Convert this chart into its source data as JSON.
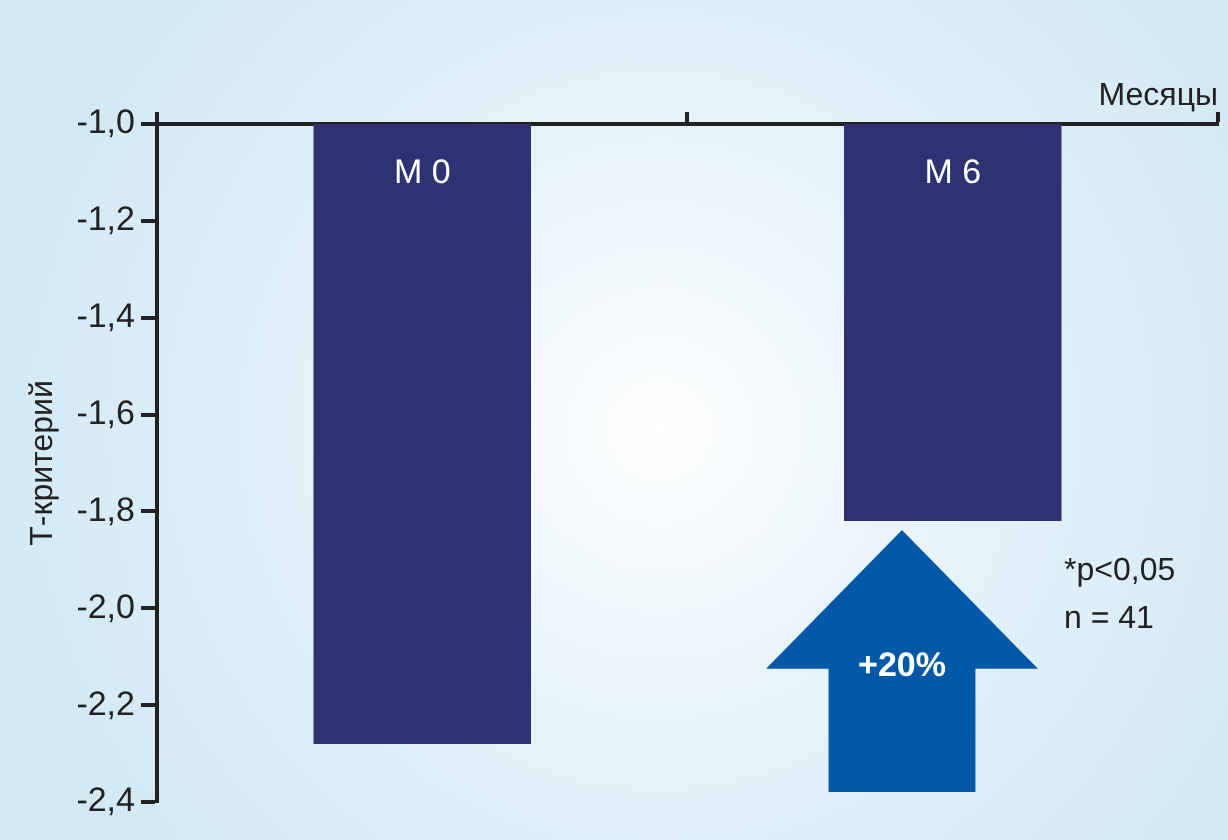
{
  "chart_data": {
    "type": "bar",
    "categories": [
      "M 0",
      "M 6"
    ],
    "values": [
      -2.28,
      -1.82
    ],
    "color": "#2e3172",
    "xlabel": "Месяцы",
    "ylabel": "Т-критерий",
    "ylim": [
      -2.4,
      -1.0
    ],
    "yticks": [
      {
        "value": -2.4,
        "label": "-2,4"
      },
      {
        "value": -2.2,
        "label": "-2,2"
      },
      {
        "value": -2.0,
        "label": "-2,0"
      },
      {
        "value": -1.8,
        "label": "-1,8"
      },
      {
        "value": -1.6,
        "label": "-1,6"
      },
      {
        "value": -1.4,
        "label": "-1,4"
      },
      {
        "value": -1.2,
        "label": "-1,2"
      },
      {
        "value": -1.0,
        "label": "-1,0"
      }
    ],
    "grid": false,
    "legend": false,
    "annotations": [
      "+20%",
      "*p<0,05",
      "n = 41"
    ]
  }
}
